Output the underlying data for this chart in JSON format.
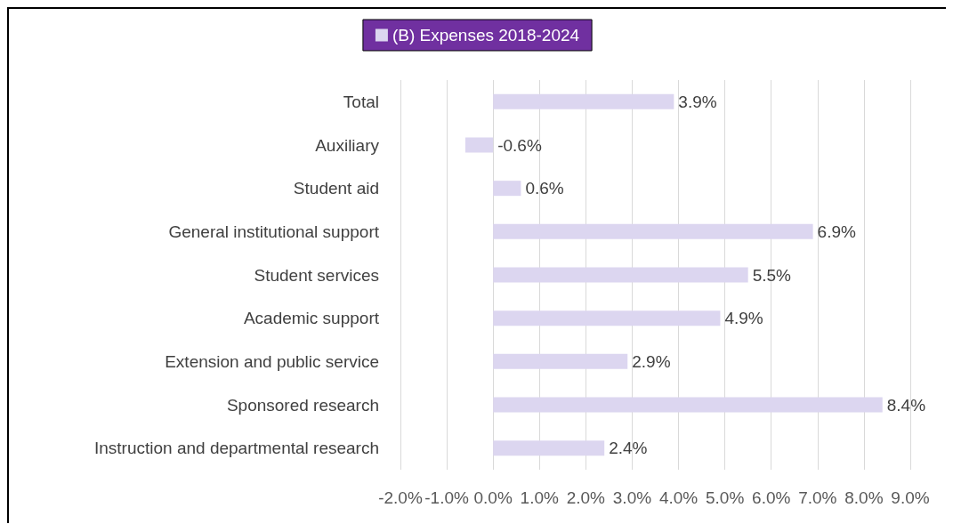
{
  "chart_data": {
    "type": "bar",
    "orientation": "horizontal",
    "categories": [
      "Total",
      "Auxiliary",
      "Student aid",
      "General institutional support",
      "Student services",
      "Academic support",
      "Extension and public service",
      "Sponsored research",
      "Instruction and departmental research"
    ],
    "series": [
      {
        "name": "(B) Expenses 2018-2024",
        "color": "#dcd6f0",
        "values": [
          3.9,
          -0.6,
          0.6,
          6.9,
          5.5,
          4.9,
          2.9,
          8.4,
          2.4
        ],
        "value_labels": [
          "3.9%",
          "-0.6%",
          "0.6%",
          "6.9%",
          "5.5%",
          "4.9%",
          "2.9%",
          "8.4%",
          "2.4%"
        ]
      }
    ],
    "xlim": [
      -2,
      9
    ],
    "xticks": [
      {
        "value": -2,
        "label": "-2.0%"
      },
      {
        "value": -1,
        "label": "-1.0%"
      },
      {
        "value": 0,
        "label": "0.0%"
      },
      {
        "value": 1,
        "label": "1.0%"
      },
      {
        "value": 2,
        "label": "2.0%"
      },
      {
        "value": 3,
        "label": "3.0%"
      },
      {
        "value": 4,
        "label": "4.0%"
      },
      {
        "value": 5,
        "label": "5.0%"
      },
      {
        "value": 6,
        "label": "6.0%"
      },
      {
        "value": 7,
        "label": "7.0%"
      },
      {
        "value": 8,
        "label": "8.0%"
      },
      {
        "value": 9,
        "label": "9.0%"
      }
    ],
    "grid": "x",
    "legend": "top"
  }
}
